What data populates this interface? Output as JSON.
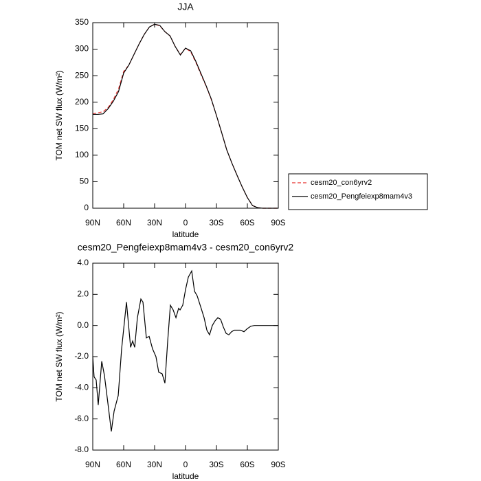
{
  "chart_data": [
    {
      "type": "line",
      "title": "JJA",
      "xlabel": "latitude",
      "ylabel": "TOM net SW flux (W/m²)",
      "x": [
        90,
        85,
        80,
        75,
        70,
        65,
        60,
        55,
        50,
        45,
        40,
        35,
        30,
        25,
        20,
        15,
        10,
        5,
        0,
        -5,
        -10,
        -15,
        -20,
        -25,
        -30,
        -35,
        -40,
        -45,
        -50,
        -55,
        -60,
        -65,
        -70,
        -75,
        -80,
        -85,
        -90
      ],
      "series": [
        {
          "name": "cesm20_con6yrv2",
          "color": "#e8312f",
          "dashed": true,
          "values": [
            178,
            180,
            182,
            190,
            205,
            225,
            258,
            270,
            290,
            310,
            328,
            342,
            347,
            344,
            333,
            325,
            305,
            290,
            302,
            295,
            275,
            252,
            230,
            205,
            175,
            143,
            110,
            85,
            62,
            40,
            20,
            5,
            1,
            0,
            0,
            0,
            0
          ]
        },
        {
          "name": "cesm20_Pengfeiexp8mam4v3",
          "color": "#000000",
          "dashed": false,
          "values": [
            177,
            177,
            178,
            188,
            202,
            220,
            255,
            270,
            290,
            310,
            328,
            342,
            347,
            345,
            333,
            325,
            305,
            289,
            302,
            297,
            277,
            254,
            231,
            206,
            175,
            143,
            110,
            85,
            62,
            40,
            20,
            5,
            1,
            0,
            0,
            0,
            0
          ]
        }
      ],
      "xlim": [
        90,
        -90
      ],
      "xticks": [
        {
          "value": 90,
          "label": "90N"
        },
        {
          "value": 60,
          "label": "60N"
        },
        {
          "value": 30,
          "label": "30N"
        },
        0,
        {
          "value": -30,
          "label": "30S"
        },
        {
          "value": -60,
          "label": "60S"
        },
        {
          "value": -90,
          "label": "90S"
        }
      ],
      "ylim": [
        0,
        350
      ],
      "yticks": [
        0,
        50,
        100,
        150,
        200,
        250,
        300,
        350
      ],
      "legend": "right"
    },
    {
      "type": "line",
      "title": "cesm20_Pengfeiexp8mam4v3 - cesm20_con6yrv2",
      "xlabel": "latitude",
      "ylabel": "TOM net SW flux (W/m²)",
      "x": [
        90,
        88.7,
        86.7,
        84.7,
        81.3,
        78.7,
        75.3,
        72,
        69.3,
        65.3,
        62,
        57.3,
        53.3,
        51.3,
        49.3,
        46.7,
        43.3,
        41.3,
        38,
        35.3,
        32,
        28.7,
        26,
        22.7,
        20,
        17.3,
        14.7,
        12,
        9.3,
        6.7,
        5.3,
        2.7,
        0,
        -2.7,
        -6,
        -8.7,
        -11.3,
        -14.7,
        -18,
        -20.7,
        -23.3,
        -26,
        -28.7,
        -31.3,
        -34,
        -36.7,
        -39.3,
        -42,
        -44.7,
        -47.3,
        -50,
        -53.3,
        -56.7,
        -60,
        -63.3,
        -66.7,
        -90
      ],
      "series": [
        {
          "color": "#000000",
          "dashed": false,
          "values": [
            -2.0,
            -3.3,
            -3.5,
            -5.1,
            -2.3,
            -3.2,
            -5.0,
            -6.8,
            -5.5,
            -4.5,
            -1.5,
            1.5,
            -1.4,
            -1.0,
            -1.4,
            0.5,
            1.7,
            1.5,
            -0.8,
            -0.7,
            -1.5,
            -2.0,
            -3.0,
            -3.1,
            -3.7,
            -1.0,
            1.3,
            1.0,
            0.5,
            1.1,
            1.0,
            1.3,
            2.3,
            3.1,
            3.5,
            2.2,
            1.9,
            1.2,
            0.5,
            -0.3,
            -0.6,
            0.0,
            0.3,
            0.5,
            0.4,
            -0.1,
            -0.5,
            -0.6,
            -0.4,
            -0.3,
            -0.3,
            -0.3,
            -0.4,
            -0.2,
            -0.05,
            0.0,
            0.0
          ]
        }
      ],
      "xlim": [
        90,
        -90
      ],
      "xticks": [
        {
          "value": 90,
          "label": "90N"
        },
        {
          "value": 60,
          "label": "60N"
        },
        {
          "value": 30,
          "label": "30N"
        },
        0,
        {
          "value": -30,
          "label": "30S"
        },
        {
          "value": -60,
          "label": "60S"
        },
        {
          "value": -90,
          "label": "90S"
        }
      ],
      "ylim": [
        -8,
        4
      ],
      "yticks": [
        {
          "value": -8,
          "label": "-8.0"
        },
        {
          "value": -6,
          "label": "-6.0"
        },
        {
          "value": -4,
          "label": "-4.0"
        },
        {
          "value": -2,
          "label": "-2.0"
        },
        {
          "value": 0,
          "label": "0.0"
        },
        {
          "value": 2,
          "label": "2.0"
        },
        {
          "value": 4,
          "label": "4.0"
        }
      ]
    }
  ]
}
